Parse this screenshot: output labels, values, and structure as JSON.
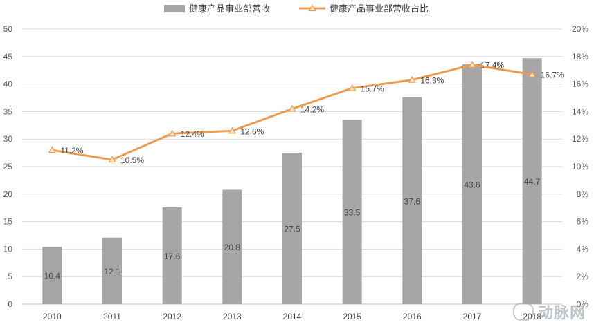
{
  "chart_data": {
    "type": "bar",
    "categories": [
      "2010",
      "2011",
      "2012",
      "2013",
      "2014",
      "2015",
      "2016",
      "2017",
      "2018"
    ],
    "series": [
      {
        "name": "健康产品事业部营收",
        "type": "bar",
        "axis": "left",
        "color": "#a6a6a6",
        "values": [
          10.4,
          12.1,
          17.6,
          20.8,
          27.5,
          33.5,
          37.6,
          43.6,
          44.7
        ],
        "labels": [
          "10.4",
          "12.1",
          "17.6",
          "20.8",
          "27.5",
          "33.5",
          "37.6",
          "43.6",
          "44.7"
        ]
      },
      {
        "name": "健康产品事业部营收占比",
        "type": "line",
        "axis": "right",
        "color": "#ed9b4f",
        "values": [
          11.2,
          10.5,
          12.4,
          12.6,
          14.2,
          15.7,
          16.3,
          17.4,
          16.7
        ],
        "labels": [
          "11.2%",
          "10.5%",
          "12.4%",
          "12.6%",
          "14.2%",
          "15.7%",
          "16.3%",
          "17.4%",
          "16.7%"
        ]
      }
    ],
    "y_left": {
      "range": [
        0,
        50
      ],
      "ticks": [
        "0",
        "5",
        "10",
        "15",
        "20",
        "25",
        "30",
        "35",
        "40",
        "45",
        "50"
      ]
    },
    "y_right": {
      "range": [
        0,
        20
      ],
      "ticks": [
        "0%",
        "2%",
        "4%",
        "6%",
        "8%",
        "10%",
        "12%",
        "14%",
        "16%",
        "18%",
        "20%"
      ]
    },
    "grid": true,
    "legend": "top-center"
  },
  "watermark": {
    "text": "动脉网",
    "sub": "vcbeat.top"
  }
}
